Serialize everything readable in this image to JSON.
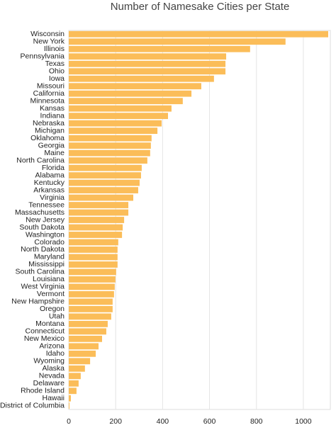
{
  "chart_data": {
    "type": "bar",
    "orientation": "horizontal",
    "title": "Number of Namesake Cities per State",
    "categories": [
      "Wisconsin",
      "New York",
      "Illinois",
      "Pennsylvania",
      "Texas",
      "Ohio",
      "Iowa",
      "Missouri",
      "California",
      "Minnesota",
      "Kansas",
      "Indiana",
      "Nebraska",
      "Michigan",
      "Oklahoma",
      "Georgia",
      "Maine",
      "North Carolina",
      "Florida",
      "Alabama",
      "Kentucky",
      "Arkansas",
      "Virginia",
      "Tennessee",
      "Massachusetts",
      "New Jersey",
      "South Dakota",
      "Washington",
      "Colorado",
      "North Dakota",
      "Maryland",
      "Mississippi",
      "South Carolina",
      "Louisiana",
      "West Virginia",
      "Vermont",
      "New Hampshire",
      "Oregon",
      "Utah",
      "Montana",
      "Connecticut",
      "New Mexico",
      "Arizona",
      "Idaho",
      "Wyoming",
      "Alaska",
      "Nevada",
      "Delaware",
      "Rhode Island",
      "Hawaii",
      "District of Columbia"
    ],
    "values": [
      1106,
      924,
      773,
      671,
      668,
      668,
      619,
      565,
      523,
      486,
      438,
      423,
      396,
      378,
      353,
      350,
      347,
      335,
      311,
      308,
      302,
      296,
      275,
      254,
      254,
      236,
      230,
      227,
      211,
      208,
      208,
      208,
      202,
      199,
      196,
      193,
      187,
      187,
      181,
      166,
      160,
      142,
      127,
      115,
      91,
      69,
      51,
      42,
      33,
      9,
      3
    ],
    "color": "#fbbd59",
    "xlim": [
      0,
      1115
    ],
    "xticks": [
      0,
      200,
      400,
      600,
      800,
      1000
    ],
    "grid": true
  }
}
